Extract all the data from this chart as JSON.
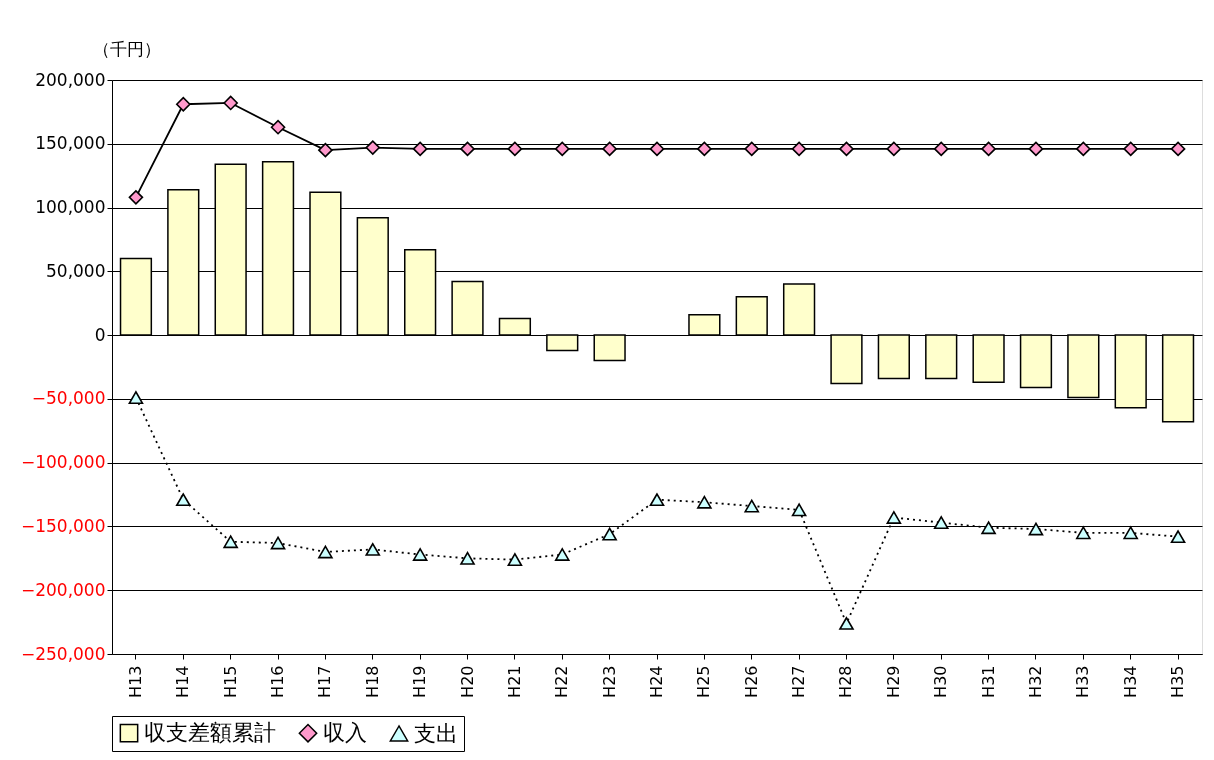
{
  "chart_data": {
    "type": "bar",
    "ylabel": "（千円）",
    "categories": [
      "H13",
      "H14",
      "H15",
      "H16",
      "H17",
      "H18",
      "H19",
      "H20",
      "H21",
      "H22",
      "H23",
      "H24",
      "H25",
      "H26",
      "H27",
      "H28",
      "H29",
      "H30",
      "H31",
      "H32",
      "H33",
      "H34",
      "H35"
    ],
    "series": [
      {
        "name": "収支差額累計",
        "color": "#ffffcc",
        "values": [
          60000,
          114000,
          134000,
          136000,
          112000,
          92000,
          67000,
          42000,
          13000,
          -12000,
          -20000,
          null,
          16000,
          30000,
          40000,
          -38000,
          -34000,
          -34000,
          -37000,
          -41000,
          -49000,
          -57000,
          -68000
        ]
      },
      {
        "name": "収入",
        "type": "line",
        "color": "#ff99cc",
        "marker": "diamond",
        "line_style": "solid",
        "values": [
          108000,
          181000,
          182000,
          163000,
          145000,
          147000,
          146000,
          146000,
          146000,
          146000,
          146000,
          146000,
          146000,
          146000,
          146000,
          146000,
          146000,
          146000,
          146000,
          146000,
          146000,
          146000,
          146000
        ]
      },
      {
        "name": "支出",
        "type": "line",
        "color": "#ccffff",
        "marker": "triangle",
        "line_style": "dotted",
        "values": [
          -49000,
          -129000,
          -162000,
          -163000,
          -170000,
          -168000,
          -172000,
          -175000,
          -176000,
          -172000,
          -156000,
          -129000,
          -131000,
          -134000,
          -137000,
          -226000,
          -143000,
          -147000,
          -151000,
          -152000,
          -155000,
          -155000,
          -158000
        ]
      }
    ],
    "ylim": [
      -250000,
      200000
    ],
    "yticks": [
      {
        "value": -250000,
        "label": "−250,000"
      },
      {
        "value": -200000,
        "label": "−200,000"
      },
      {
        "value": -150000,
        "label": "−150,000"
      },
      {
        "value": -100000,
        "label": "−100,000"
      },
      {
        "value": -50000,
        "label": "−50,000"
      },
      0,
      {
        "value": 50000,
        "label": "50,000"
      },
      {
        "value": 100000,
        "label": "100,000"
      },
      {
        "value": 150000,
        "label": "150,000"
      },
      {
        "value": 200000,
        "label": "200,000"
      }
    ],
    "grid": "y",
    "legend": "bottom"
  }
}
